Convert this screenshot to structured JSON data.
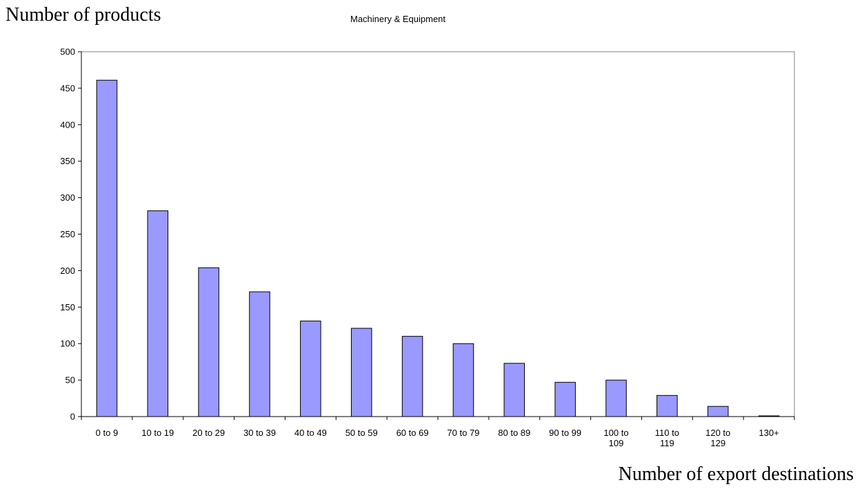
{
  "chart_data": {
    "type": "bar",
    "title": "Machinery & Equipment",
    "ylabel": "Number of products",
    "xlabel": "Number of export destinations",
    "ylim": [
      0,
      500
    ],
    "yticks": [
      0,
      50,
      100,
      150,
      200,
      250,
      300,
      350,
      400,
      450,
      500
    ],
    "categories": [
      [
        "0 to 9"
      ],
      [
        "10 to 19"
      ],
      [
        "20 to 29"
      ],
      [
        "30 to 39"
      ],
      [
        "40 to 49"
      ],
      [
        "50 to 59"
      ],
      [
        "60 to 69"
      ],
      [
        "70 to 79"
      ],
      [
        "80 to 89"
      ],
      [
        "90 to 99"
      ],
      [
        "100 to",
        "109"
      ],
      [
        "110 to",
        "119"
      ],
      [
        "120 to",
        "129"
      ],
      [
        "130+"
      ]
    ],
    "values": [
      461,
      282,
      204,
      171,
      131,
      121,
      110,
      100,
      73,
      47,
      50,
      29,
      14,
      1
    ],
    "bar_color": "#9999ff",
    "grid": false,
    "legend": "none"
  }
}
